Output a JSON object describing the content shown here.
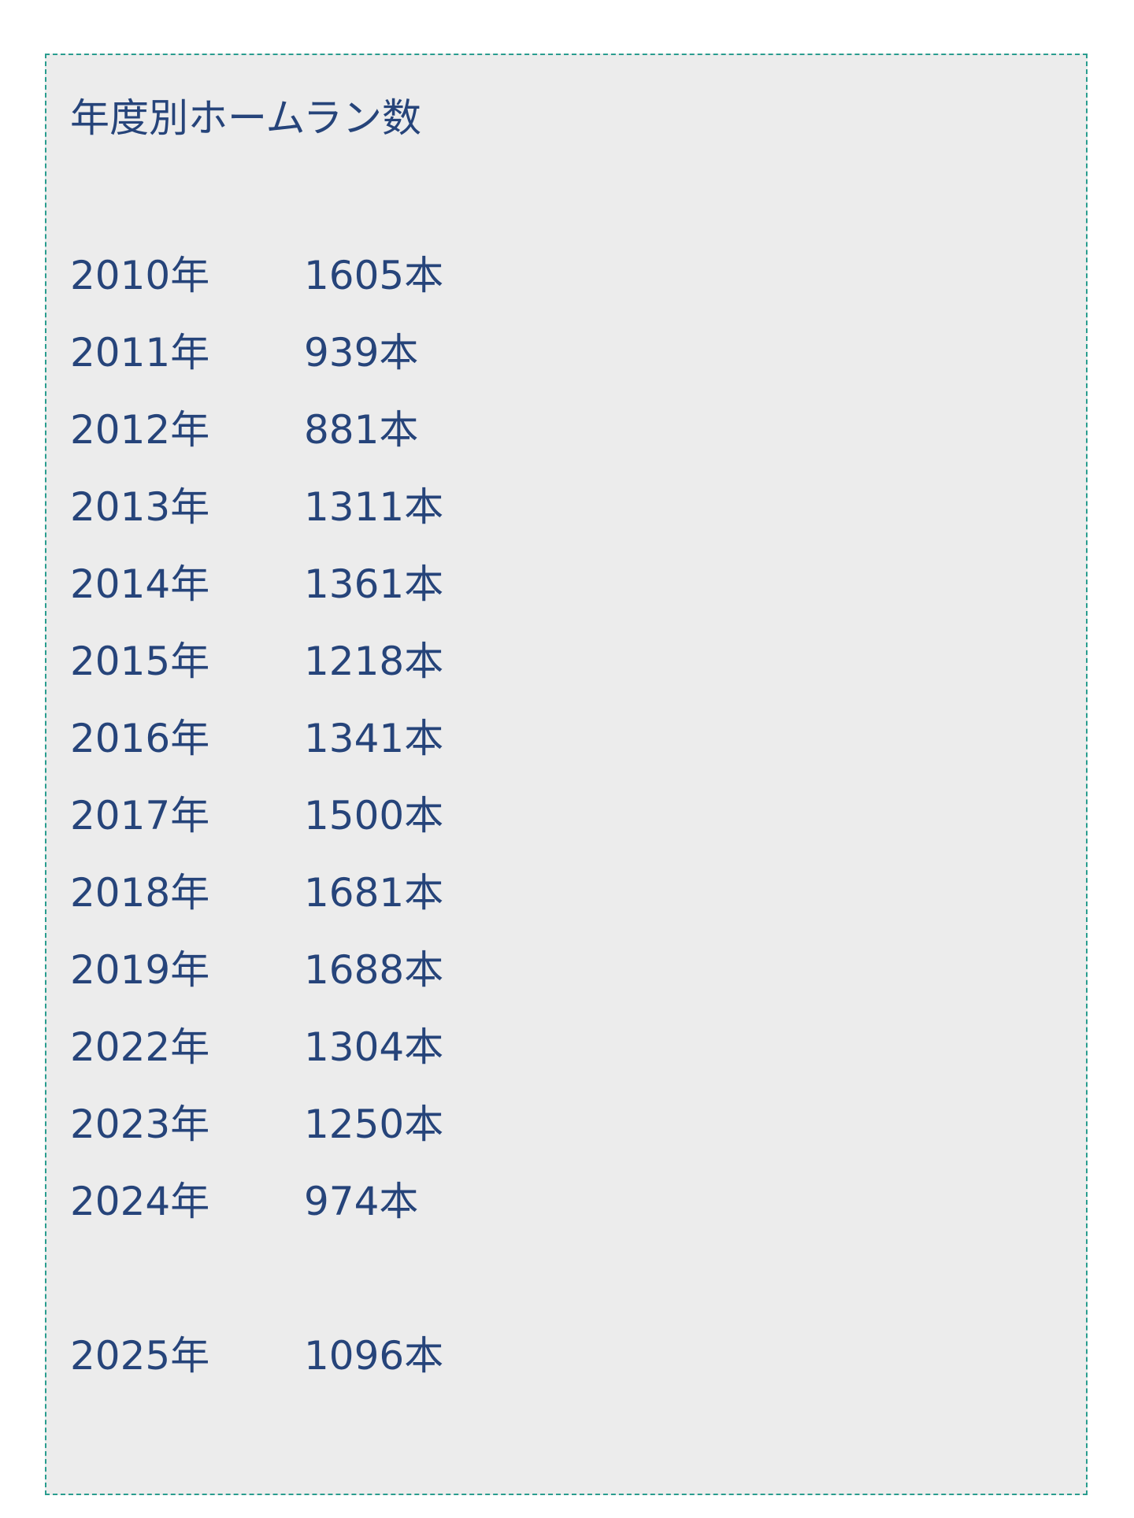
{
  "title": "年度別ホームラン数",
  "rows": [
    {
      "year": "2010年",
      "count": "1605本"
    },
    {
      "year": "2011年",
      "count": "939本"
    },
    {
      "year": "2012年",
      "count": "881本"
    },
    {
      "year": "2013年",
      "count": "1311本"
    },
    {
      "year": "2014年",
      "count": "1361本"
    },
    {
      "year": "2015年",
      "count": "1218本"
    },
    {
      "year": "2016年",
      "count": "1341本"
    },
    {
      "year": "2017年",
      "count": "1500本"
    },
    {
      "year": "2018年",
      "count": "1681本"
    },
    {
      "year": "2019年",
      "count": "1688本"
    },
    {
      "year": "2022年",
      "count": "1304本"
    },
    {
      "year": "2023年",
      "count": "1250本"
    },
    {
      "year": "2024年",
      "count": "974本"
    }
  ],
  "latest": {
    "year": "2025年",
    "count": "1096本"
  },
  "colors": {
    "text": "#26447a",
    "background": "#ececec",
    "border": "#2a9d8f"
  }
}
